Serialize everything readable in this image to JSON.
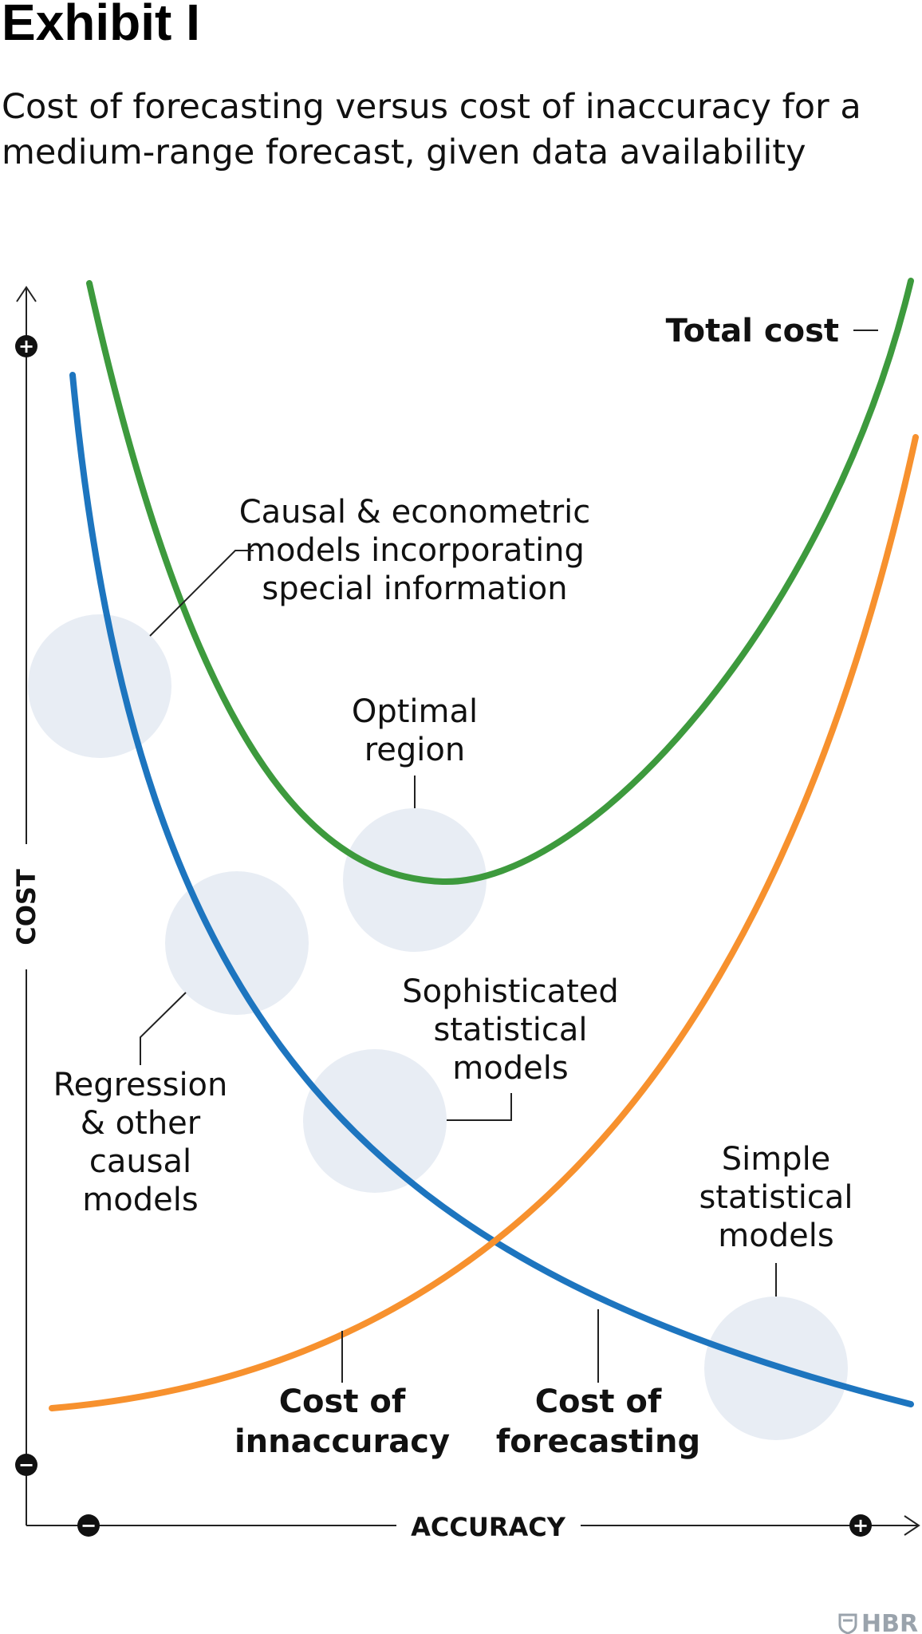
{
  "header": {
    "title": "Exhibit I",
    "subtitle_lines": [
      "Cost of forecasting versus cost of inaccuracy for a",
      "medium-range forecast, given data availability"
    ]
  },
  "axes": {
    "y_label": "COST",
    "x_label": "ACCURACY",
    "y_top_sign": "+",
    "y_bottom_sign": "−",
    "x_left_sign": "−",
    "x_right_sign": "+"
  },
  "curves": {
    "total_cost": {
      "label_lines": [
        "Total cost"
      ],
      "color": "#3d9a3d"
    },
    "cost_of_inaccuracy": {
      "label_lines": [
        "Cost of",
        "innaccuracy"
      ],
      "color": "#1d75bf"
    },
    "cost_of_forecasting": {
      "label_lines": [
        "Cost of",
        "forecasting"
      ],
      "color": "#f7912e"
    }
  },
  "regions": {
    "causal_econometric": [
      "Causal & econometric",
      "models incorporating",
      "special information"
    ],
    "optimal": [
      "Optimal",
      "region"
    ],
    "regression": [
      "Regression",
      "& other",
      "causal",
      "models"
    ],
    "sophisticated": [
      "Sophisticated",
      "statistical",
      "models"
    ],
    "simple": [
      "Simple",
      "statistical",
      "models"
    ]
  },
  "footer": {
    "logo_text": "HBR"
  },
  "colors": {
    "bubble": "#e8edf4",
    "axis": "#222222"
  }
}
